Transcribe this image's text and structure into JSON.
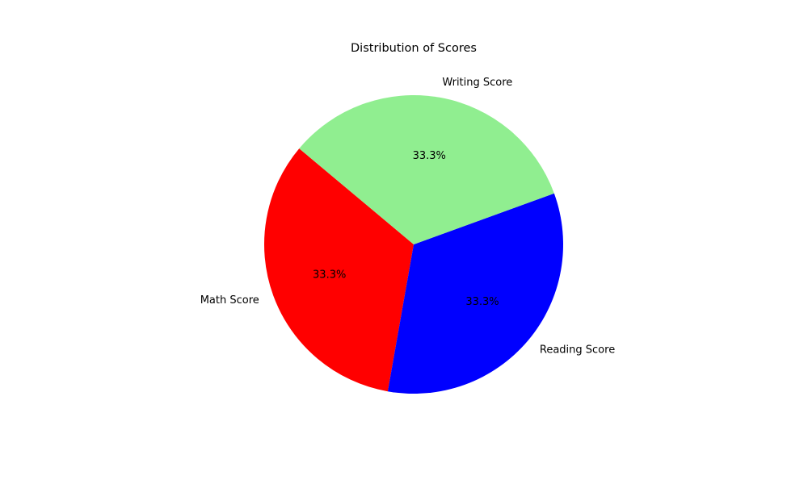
{
  "chart_data": {
    "type": "pie",
    "title": "Distribution of Scores",
    "categories": [
      "Math Score",
      "Reading Score",
      "Writing Score"
    ],
    "values": [
      33.3,
      33.3,
      33.3
    ],
    "percent_labels": [
      "33.3%",
      "33.3%",
      "33.3%"
    ],
    "colors": [
      "#ff0000",
      "#0000ff",
      "#90ee90"
    ],
    "start_angle_deg": 140,
    "legend": "none"
  }
}
